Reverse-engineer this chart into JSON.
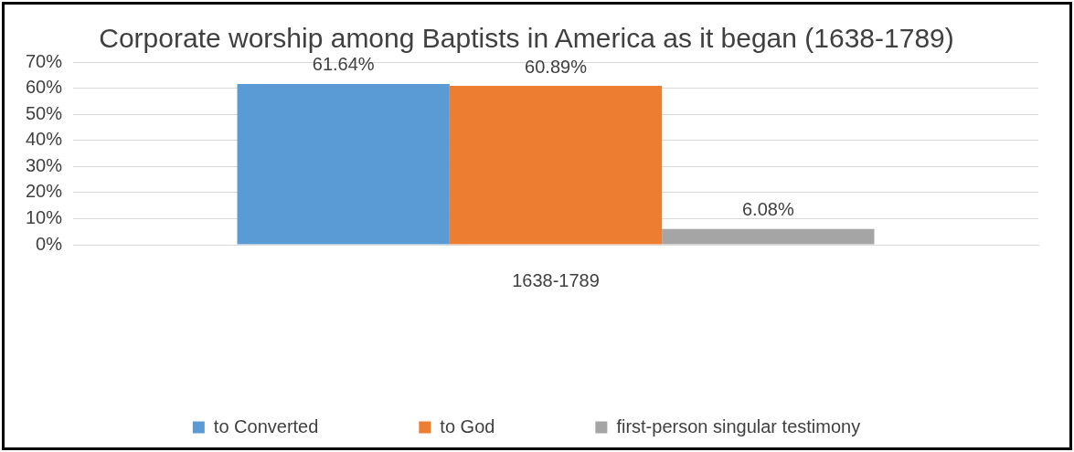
{
  "chart_data": {
    "type": "bar",
    "title": "Corporate worship among Baptists in America as it began (1638-1789)",
    "categories": [
      "1638-1789"
    ],
    "series": [
      {
        "name": "to Converted",
        "color": "#5b9bd5",
        "values": [
          61.64
        ],
        "value_labels": [
          "61.64%"
        ]
      },
      {
        "name": "to God",
        "color": "#ed7d31",
        "values": [
          60.89
        ],
        "value_labels": [
          "60.89%"
        ]
      },
      {
        "name": "first-person singular testimony",
        "color": "#a5a5a5",
        "values": [
          6.08
        ],
        "value_labels": [
          "6.08%"
        ]
      }
    ],
    "ylim": [
      0,
      70
    ],
    "yticks": [
      {
        "value": 0,
        "label": "0%"
      },
      {
        "value": 10,
        "label": "10%"
      },
      {
        "value": 20,
        "label": "20%"
      },
      {
        "value": 30,
        "label": "30%"
      },
      {
        "value": 40,
        "label": "40%"
      },
      {
        "value": 50,
        "label": "50%"
      },
      {
        "value": 60,
        "label": "60%"
      },
      {
        "value": 70,
        "label": "70%"
      }
    ],
    "grid": "y",
    "legend": "bottom"
  }
}
